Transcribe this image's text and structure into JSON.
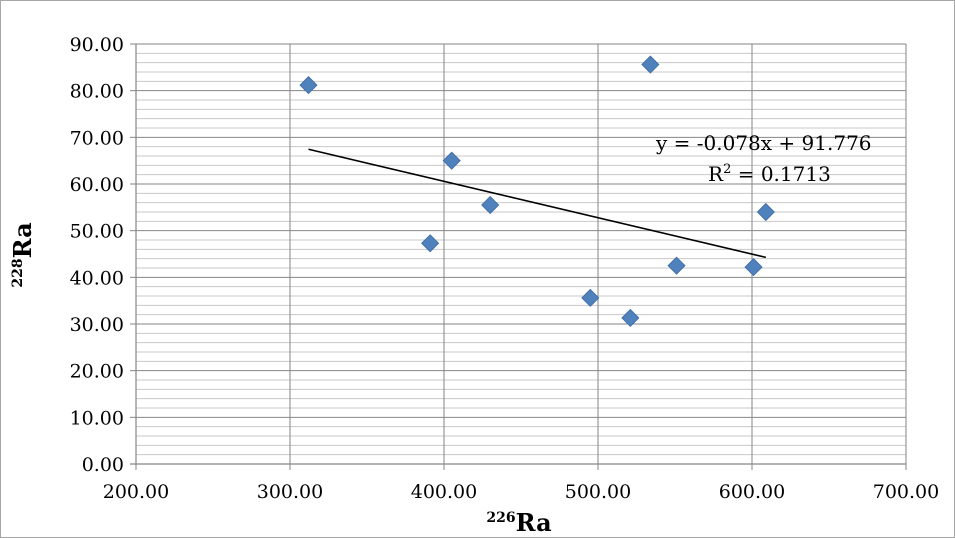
{
  "chart_data": {
    "type": "scatter",
    "title": "",
    "xlabel_prefix": "226",
    "xlabel_main": "Ra",
    "ylabel_prefix": "228",
    "ylabel_main": "Ra",
    "xlim": [
      200,
      700
    ],
    "ylim": [
      0,
      90
    ],
    "x_major_step": 100,
    "y_major_step": 10,
    "y_minor_step": 2,
    "x_tick_labels": [
      "200.00",
      "300.00",
      "400.00",
      "500.00",
      "600.00",
      "700.00"
    ],
    "y_tick_labels": [
      "0.00",
      "10.00",
      "20.00",
      "30.00",
      "40.00",
      "50.00",
      "60.00",
      "70.00",
      "80.00",
      "90.00"
    ],
    "grid": true,
    "marker_color": "#4f81bd",
    "series": [
      {
        "x": [
          312,
          391,
          405,
          430,
          495,
          521,
          534,
          551,
          601,
          609
        ],
        "y": [
          81.2,
          47.3,
          65.0,
          55.5,
          35.6,
          31.3,
          85.6,
          42.5,
          42.2,
          54.0
        ]
      }
    ],
    "trendline": {
      "slope": -0.078,
      "intercept": 91.776,
      "x_range": [
        312,
        609
      ],
      "equation_label": "y = -0.078x + 91.776",
      "r2_prefix": "R",
      "r2_sup": "2",
      "r2_value": " = 0.1713"
    }
  }
}
